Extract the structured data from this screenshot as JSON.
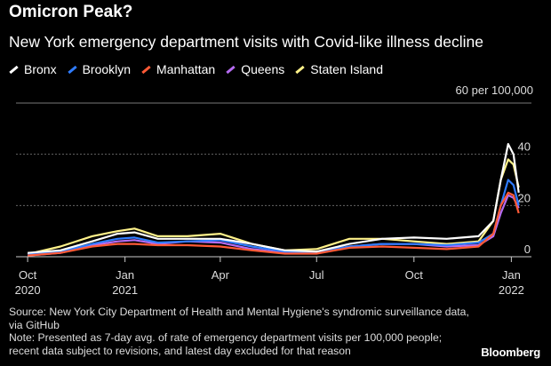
{
  "brand": "Bloomberg",
  "source": "Source: New York City Department of Health and Mental Hygiene's syndromic surveillance data, via GitHub",
  "note": "Note: Presented as 7-day avg. of rate of emergency department visits per 100,000 people; recent data subject to revisions, and latest day excluded for that reason",
  "colors": {
    "Bronx": "#ffffff",
    "Brooklyn": "#2f7cff",
    "Manhattan": "#ff5a36",
    "Queens": "#b66cf2",
    "Staten Island": "#fff28a"
  },
  "chart_data": {
    "type": "line",
    "title": "Omicron Peak?",
    "subtitle": "New York emergency department visits with Covid-like illness decline",
    "unit_label": "60 per 100,000",
    "xlabel": "",
    "ylabel": "",
    "ylim": [
      0,
      60
    ],
    "yticks": [
      0,
      20,
      40
    ],
    "grid": true,
    "legend_position": "top-left",
    "x_ticks": [
      {
        "date": "2020-10-01",
        "line1": "Oct",
        "line2": "2020"
      },
      {
        "date": "2021-01-01",
        "line1": "Jan",
        "line2": "2021"
      },
      {
        "date": "2021-04-01",
        "line1": "Apr",
        "line2": ""
      },
      {
        "date": "2021-07-01",
        "line1": "Jul",
        "line2": ""
      },
      {
        "date": "2021-10-01",
        "line1": "Oct",
        "line2": ""
      },
      {
        "date": "2022-01-01",
        "line1": "Jan",
        "line2": "2022"
      }
    ],
    "x": [
      "2020-10-01",
      "2020-11-01",
      "2020-12-01",
      "2020-12-25",
      "2021-01-10",
      "2021-02-01",
      "2021-03-01",
      "2021-04-01",
      "2021-05-01",
      "2021-06-01",
      "2021-07-01",
      "2021-08-01",
      "2021-09-01",
      "2021-10-01",
      "2021-11-01",
      "2021-12-01",
      "2021-12-15",
      "2021-12-22",
      "2021-12-29",
      "2022-01-03",
      "2022-01-08"
    ],
    "series": [
      {
        "name": "Bronx",
        "values": [
          1.5,
          2.5,
          6,
          9,
          9.5,
          7,
          7,
          7,
          5,
          2.5,
          2,
          5,
          7,
          7.5,
          7,
          8,
          14,
          30,
          44,
          40,
          25
        ]
      },
      {
        "name": "Brooklyn",
        "values": [
          0.8,
          2,
          5,
          7,
          7.5,
          5.5,
          6,
          6.5,
          4,
          2,
          1.8,
          4,
          5,
          5,
          4.5,
          5.5,
          9,
          20,
          30,
          28,
          20
        ]
      },
      {
        "name": "Manhattan",
        "values": [
          0.5,
          1.5,
          4,
          5,
          5,
          4.5,
          4.5,
          4,
          2.5,
          1.2,
          1.2,
          3.5,
          4,
          3.5,
          3,
          4,
          9,
          20,
          25,
          24,
          17
        ]
      },
      {
        "name": "Queens",
        "values": [
          0.5,
          1.5,
          4.5,
          6,
          6.5,
          5,
          6,
          5.5,
          3,
          1.5,
          1.5,
          4,
          5,
          5,
          4,
          4.5,
          8,
          17,
          24,
          23,
          19
        ]
      },
      {
        "name": "Staten Island",
        "values": [
          1,
          4,
          8,
          10,
          11,
          8,
          8,
          9,
          5,
          2.5,
          3,
          7,
          7,
          6,
          5,
          6,
          14,
          30,
          38,
          36,
          27
        ]
      }
    ]
  }
}
